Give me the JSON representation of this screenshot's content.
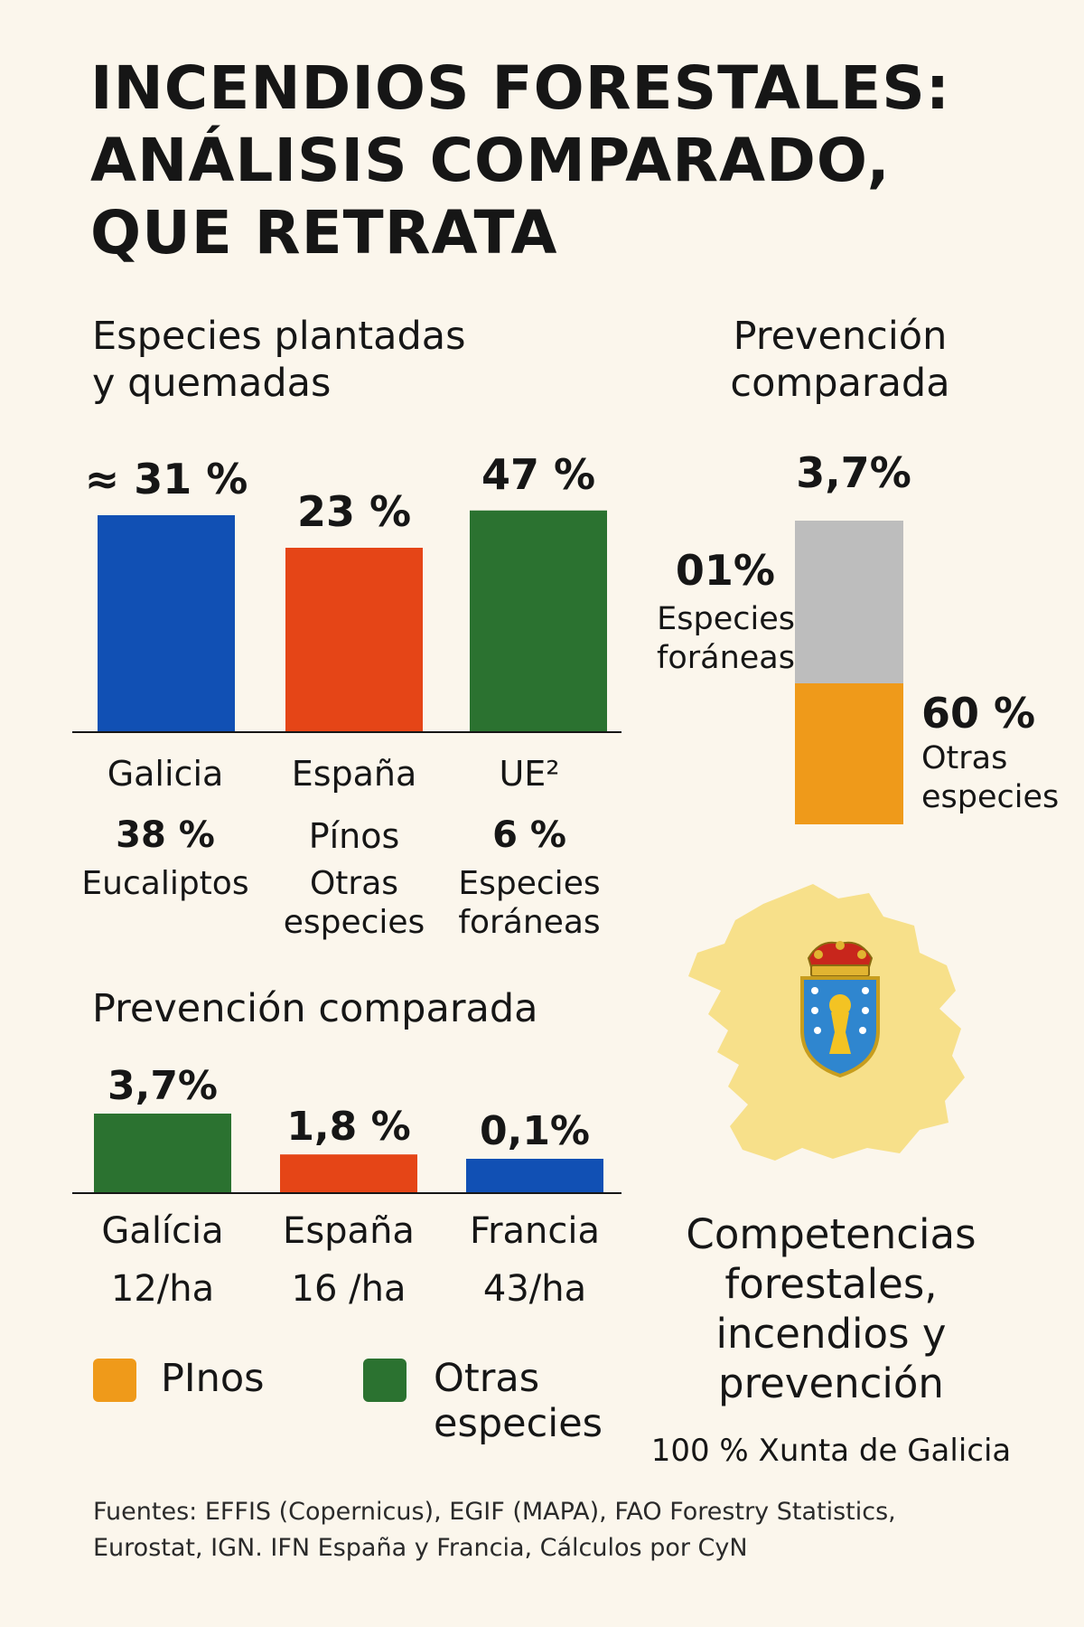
{
  "title_lines": [
    "INCENDIOS FORESTALES:",
    "ANÁLISIS COMPARADO,",
    "QUE RETRATA"
  ],
  "chart_data": [
    {
      "type": "bar",
      "title": "Especies plantadas y quemadas",
      "title_lines": [
        "Especies plantadas",
        "y quemadas"
      ],
      "categories": [
        "Galicia",
        "España",
        "UE²"
      ],
      "values": [
        31,
        23,
        47
      ],
      "value_labels": [
        "≈ 31 %",
        "23 %",
        "47 %"
      ],
      "colors": [
        "#1150b4",
        "#e54517",
        "#2b7230"
      ],
      "sub_values": [
        "38 %",
        "Pínos",
        "6 %"
      ],
      "sub_labels": [
        [
          "Eucaliptos"
        ],
        [
          "Otras",
          "especies"
        ],
        [
          "Especies",
          "foráneas"
        ]
      ]
    },
    {
      "type": "bar",
      "title": "Prevención comparada",
      "stacked": true,
      "title_lines": [
        "Prevención",
        "comparada"
      ],
      "total_label": "3,7%",
      "segments": [
        {
          "value": 1,
          "label": "01%",
          "name_lines": [
            "Especies",
            "foráneas"
          ],
          "color": "#bdbdbd"
        },
        {
          "value": 60,
          "label": "60 %",
          "name_lines": [
            "Otras",
            "especies"
          ],
          "color": "#ef9a1a"
        }
      ]
    },
    {
      "type": "bar",
      "title": "Prevención comparada",
      "categories": [
        "Galícia",
        "España",
        "Francia"
      ],
      "values": [
        3.7,
        1.8,
        0.1
      ],
      "value_labels": [
        "3,7%",
        "1,8 %",
        "0,1%"
      ],
      "colors": [
        "#2b7230",
        "#e54517",
        "#1150b4"
      ],
      "sub_labels": [
        "12/ha",
        "16 /ha",
        "43/ha"
      ],
      "legend": [
        {
          "label": "PInos",
          "color": "#ef9a1a"
        },
        {
          "label": "Otras especies",
          "lines": [
            "Otras",
            "especies"
          ],
          "color": "#2b7230"
        }
      ]
    }
  ],
  "map": {
    "region_color": "#f7e08a",
    "caption_lines": [
      "Competencias",
      "forestales,",
      "incendios y",
      "prevención"
    ],
    "sub_caption": "100 % Xunta de Galicia"
  },
  "footer_lines": [
    "Fuentes: EFFIS (Copernicus), EGIF (MAPA), FAO Forestry Statistics,",
    "Eurostat, IGN. IFN España y Francia, Cálculos por CyN"
  ]
}
